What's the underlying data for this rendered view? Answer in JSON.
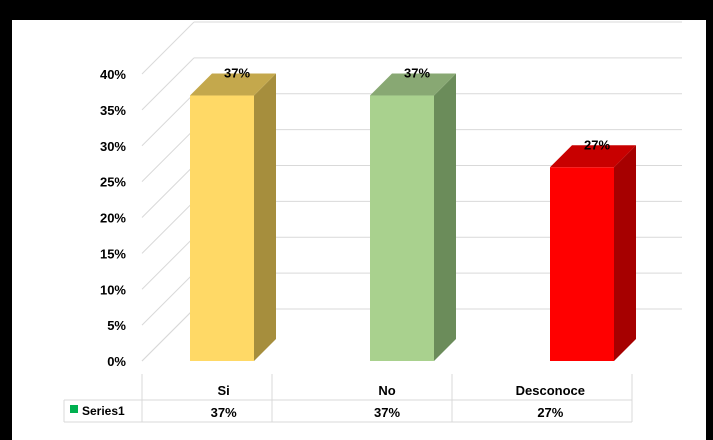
{
  "chart_data": {
    "type": "bar",
    "style": "3d-column",
    "categories": [
      "Si",
      "No",
      "Desconoce"
    ],
    "series": [
      {
        "name": "Series1",
        "values": [
          37,
          37,
          27
        ],
        "labels": [
          "37%",
          "37%",
          "27%"
        ]
      }
    ],
    "bar_colors": [
      {
        "front": "#FFD966",
        "side": "#A68E3D",
        "top": "#C4A84C"
      },
      {
        "front": "#A9D18E",
        "side": "#6B8C5A",
        "top": "#88A873"
      },
      {
        "front": "#FF0000",
        "side": "#A60000",
        "top": "#C80000"
      }
    ],
    "ylim": [
      0,
      40
    ],
    "yticks": [
      0,
      5,
      10,
      15,
      20,
      25,
      30,
      35,
      40
    ],
    "ytick_labels": [
      "0%",
      "5%",
      "10%",
      "15%",
      "20%",
      "25%",
      "30%",
      "35%",
      "40%"
    ],
    "grid": true,
    "legend": "data-table",
    "legend_color": "#00B050",
    "data_table": {
      "series_label": "Series1",
      "values": [
        "37%",
        "37%",
        "27%"
      ]
    }
  }
}
